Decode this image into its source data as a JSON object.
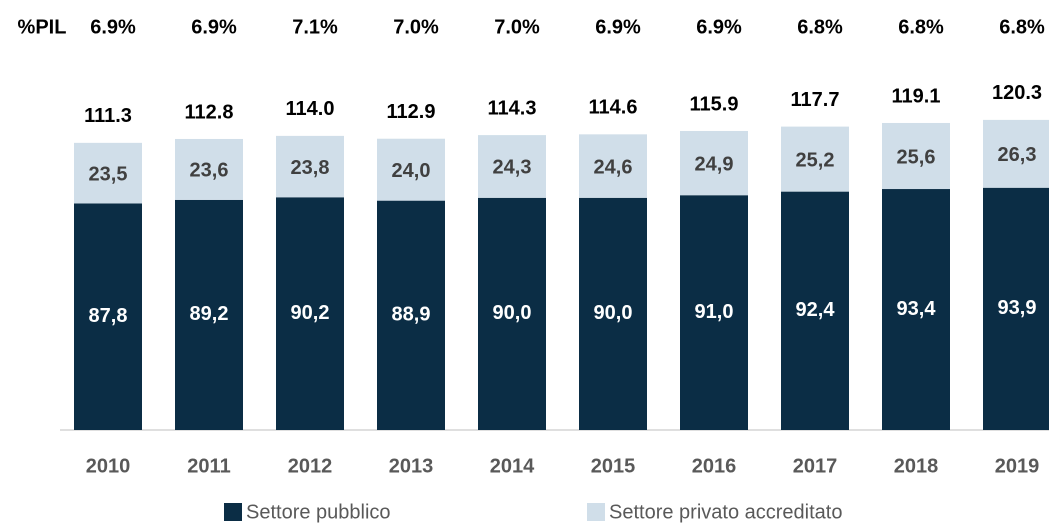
{
  "chart_data": {
    "type": "stacked-bar",
    "categories": [
      "2010",
      "2011",
      "2012",
      "2013",
      "2014",
      "2015",
      "2016",
      "2017",
      "2018",
      "2019"
    ],
    "series": [
      {
        "name": "Settore pubblico",
        "color": "#0b2d45",
        "values": [
          87.8,
          89.2,
          90.2,
          88.9,
          90.0,
          90.0,
          91.0,
          92.4,
          93.4,
          93.9
        ],
        "value_labels": [
          "87,8",
          "89,2",
          "90,2",
          "88,9",
          "90,0",
          "90,0",
          "91,0",
          "92,4",
          "93,4",
          "93,9"
        ]
      },
      {
        "name": "Settore privato accreditato",
        "color": "#d0dee9",
        "values": [
          23.5,
          23.6,
          23.8,
          24.0,
          24.3,
          24.6,
          24.9,
          25.2,
          25.6,
          26.3
        ],
        "value_labels": [
          "23,5",
          "23,6",
          "23,8",
          "24,0",
          "24,3",
          "24,6",
          "24,9",
          "25,2",
          "25,6",
          "26,3"
        ]
      }
    ],
    "totals": [
      {
        "value": 111.3,
        "label": "111.3"
      },
      {
        "value": 112.8,
        "label": "112.8"
      },
      {
        "value": 114.0,
        "label": "114.0"
      },
      {
        "value": 112.9,
        "label": "112.9"
      },
      {
        "value": 114.3,
        "label": "114.3"
      },
      {
        "value": 114.6,
        "label": "114.6"
      },
      {
        "value": 115.9,
        "label": "115.9"
      },
      {
        "value": 117.7,
        "label": "117.7"
      },
      {
        "value": 119.1,
        "label": "119.1"
      },
      {
        "value": 120.3,
        "label": "120.3"
      }
    ],
    "pil_label": "%PIL",
    "pil": [
      {
        "value": 6.9,
        "label": "6.9%"
      },
      {
        "value": 6.9,
        "label": "6.9%"
      },
      {
        "value": 7.1,
        "label": "7.1%"
      },
      {
        "value": 7.0,
        "label": "7.0%"
      },
      {
        "value": 7.0,
        "label": "7.0%"
      },
      {
        "value": 6.9,
        "label": "6.9%"
      },
      {
        "value": 6.9,
        "label": "6.9%"
      },
      {
        "value": 6.8,
        "label": "6.8%"
      },
      {
        "value": 6.8,
        "label": "6.8%"
      },
      {
        "value": 6.8,
        "label": "6.8%"
      }
    ],
    "ylim": [
      0,
      125
    ]
  }
}
